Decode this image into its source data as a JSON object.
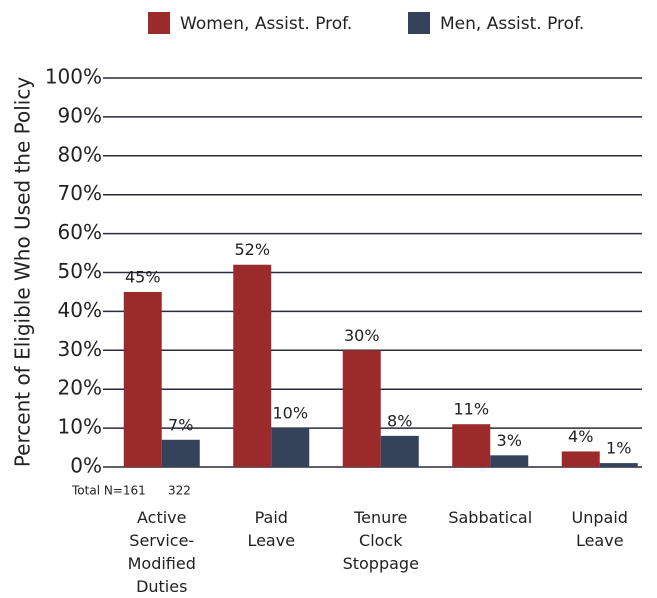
{
  "chart_data": {
    "type": "bar",
    "ylabel": "Percent of Eligible Who Used the Policy",
    "categories": [
      "Active\nService-\nModified\nDuties",
      "Paid\nLeave",
      "Tenure\nClock\nStoppage",
      "Sabbatical",
      "Unpaid\nLeave"
    ],
    "series": [
      {
        "name": "Women, Assist. Prof.",
        "color": "#9b2a2a",
        "values": [
          45,
          52,
          30,
          11,
          4
        ],
        "value_labels": [
          "45%",
          "52%",
          "30%",
          "11%",
          "4%"
        ]
      },
      {
        "name": "Men, Assist. Prof.",
        "color": "#34425a",
        "values": [
          7,
          10,
          8,
          3,
          1
        ],
        "value_labels": [
          "7%",
          "10%",
          "8%",
          "3%",
          "1%"
        ]
      }
    ],
    "annotations": [
      "Total N=161",
      "322"
    ],
    "ylim": [
      0,
      100
    ],
    "yticks": [
      {
        "value": 0,
        "label": "0%"
      },
      {
        "value": 10,
        "label": "10%"
      },
      {
        "value": 20,
        "label": "20%"
      },
      {
        "value": 30,
        "label": "30%"
      },
      {
        "value": 40,
        "label": "40%"
      },
      {
        "value": 50,
        "label": "50%"
      },
      {
        "value": 60,
        "label": "60%"
      },
      {
        "value": 70,
        "label": "70%"
      },
      {
        "value": 80,
        "label": "80%"
      },
      {
        "value": 90,
        "label": "90%"
      },
      {
        "value": 100,
        "label": "100%"
      }
    ],
    "grid": true,
    "legend": "top"
  }
}
